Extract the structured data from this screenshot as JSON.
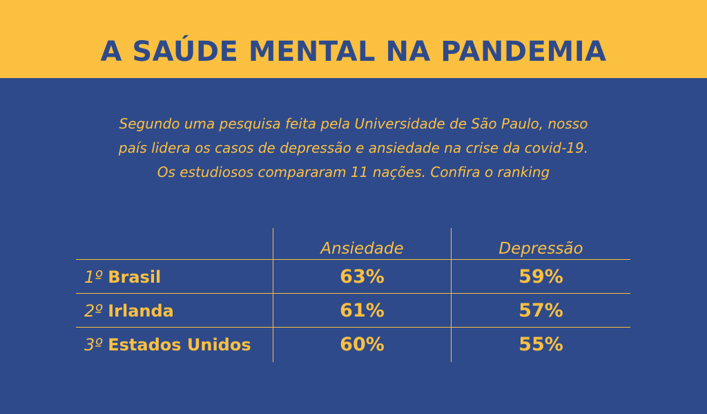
{
  "header": {
    "title": "A SAÚDE MENTAL NA PANDEMIA"
  },
  "intro": {
    "line1": "Segundo uma pesquisa feita pela Universidade de São Paulo, nosso",
    "line2": "país lidera os casos de depressão e ansiedade na crise da covid-19.",
    "line3": "Os estudiosos compararam 11 nações. Confira o ranking"
  },
  "colors": {
    "background": "#2e4a8b",
    "accent": "#fcc040"
  },
  "chart_data": {
    "type": "table",
    "title": "A SAÚDE MENTAL NA PANDEMIA",
    "columns": [
      "Ansiedade",
      "Depressão"
    ],
    "rows": [
      {
        "rank": "1º",
        "country": "Brasil",
        "ansiedade": "63%",
        "depressao": "59%"
      },
      {
        "rank": "2º",
        "country": "Irlanda",
        "ansiedade": "61%",
        "depressao": "57%"
      },
      {
        "rank": "3º",
        "country": "Estados Unidos",
        "ansiedade": "60%",
        "depressao": "55%"
      }
    ],
    "values": {
      "ansiedade": [
        63,
        61,
        60
      ],
      "depressao": [
        59,
        57,
        55
      ],
      "unit": "%"
    }
  }
}
